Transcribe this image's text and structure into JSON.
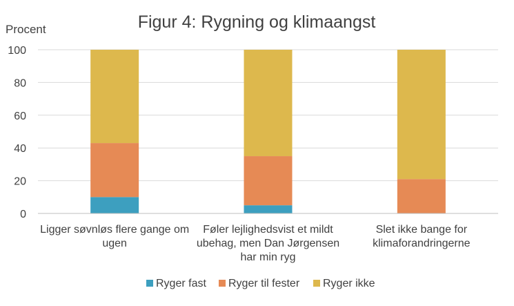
{
  "chart_data": {
    "type": "bar",
    "stacked": true,
    "title": "Figur 4: Rygning og klimaangst",
    "ylabel": "Procent",
    "xlabel": "",
    "ylim": [
      0,
      100
    ],
    "yticks": [
      0,
      20,
      40,
      60,
      80,
      100
    ],
    "grid": true,
    "legend_position": "bottom",
    "categories": [
      [
        "Ligger søvnløs flere gange om",
        "ugen"
      ],
      [
        "Føler lejlighedsvist et mildt",
        "ubehag, men Dan Jørgensen",
        "har min ryg"
      ],
      [
        "Slet ikke bange for",
        "klimaforandringerne"
      ]
    ],
    "series": [
      {
        "name": "Ryger fast",
        "color": "#3d9fbf",
        "values": [
          10,
          5,
          0
        ]
      },
      {
        "name": "Ryger til fester",
        "color": "#e68a55",
        "values": [
          33,
          30,
          21
        ]
      },
      {
        "name": "Ryger ikke",
        "color": "#ddb84d",
        "values": [
          57,
          65,
          79
        ]
      }
    ]
  }
}
